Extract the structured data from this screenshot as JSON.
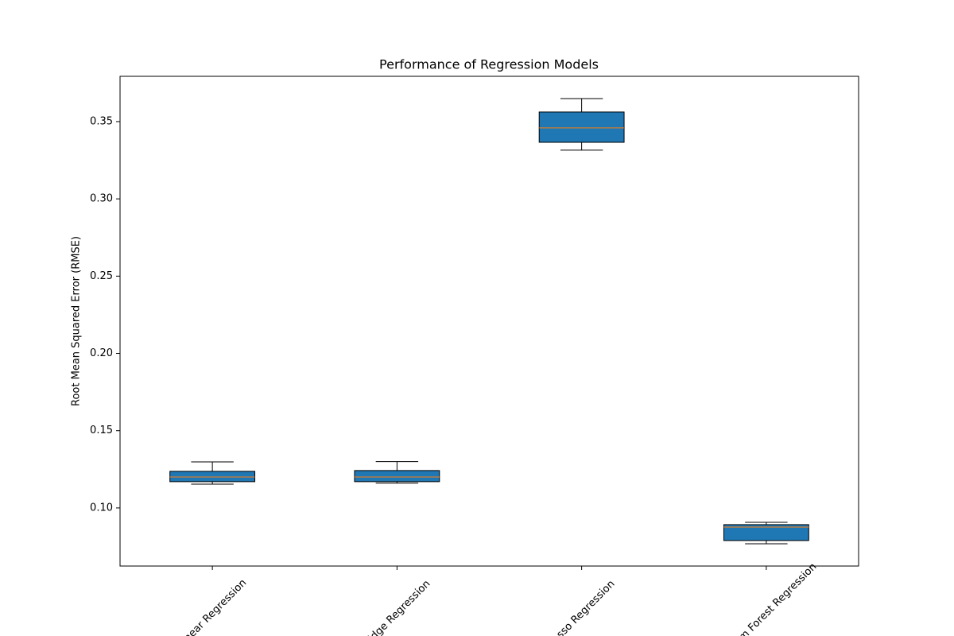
{
  "chart_data": {
    "type": "box",
    "title": "Performance of Regression Models",
    "y_label": "Root Mean Squared Error (RMSE)",
    "categories": [
      "Linear Regression",
      "Ridge Regression",
      "Lasso Regression",
      "Random Forest Regression"
    ],
    "boxes": [
      {
        "min": 0.1154,
        "q1": 0.117,
        "median": 0.12,
        "q3": 0.1237,
        "max": 0.1298
      },
      {
        "min": 0.116,
        "q1": 0.117,
        "median": 0.12,
        "q3": 0.1242,
        "max": 0.13
      },
      {
        "min": 0.3315,
        "q1": 0.3366,
        "median": 0.3459,
        "q3": 0.3562,
        "max": 0.3649
      },
      {
        "min": 0.0768,
        "q1": 0.0789,
        "median": 0.0876,
        "q3": 0.0892,
        "max": 0.0907
      }
    ],
    "color": "#1f77b4",
    "median_color": "#ff7f0e",
    "xlim": [
      0.5,
      4.5
    ],
    "ylim": [
      0.0624,
      0.3793
    ],
    "yticks": [
      {
        "value": 0.1,
        "label": "0.10"
      },
      {
        "value": 0.15,
        "label": "0.15"
      },
      {
        "value": 0.2,
        "label": "0.20"
      },
      {
        "value": 0.25,
        "label": "0.25"
      },
      {
        "value": 0.3,
        "label": "0.30"
      },
      {
        "value": 0.35,
        "label": "0.35"
      }
    ],
    "x_label_rotation": 45
  }
}
